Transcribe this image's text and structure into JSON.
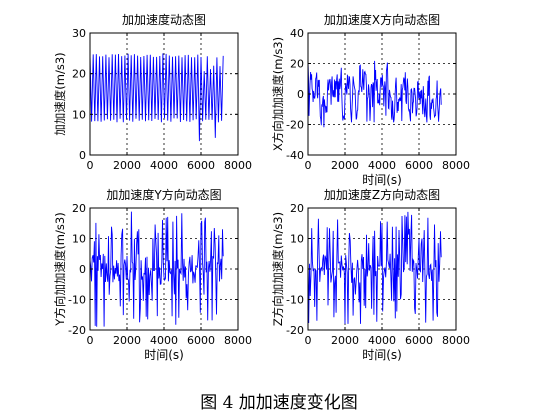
{
  "figure_caption": "图 4  加加速度变化图",
  "colors": {
    "line": "#0000ff",
    "axis": "#000000",
    "grid": "#000000",
    "background": "#ffffff"
  },
  "chart_data": [
    {
      "type": "line",
      "title": "加加速度动态图",
      "xlabel": "",
      "ylabel": "加加速度(m/s3)",
      "xlim": [
        0,
        8000
      ],
      "ylim": [
        0,
        30
      ],
      "xticks": [
        "0",
        "2000",
        "4000",
        "6000",
        "8000"
      ],
      "yticks": [
        "0",
        "10",
        "20",
        "30"
      ],
      "grid": true,
      "pattern": "oscillating",
      "data_extent": [
        0,
        7200
      ],
      "envelope": {
        "upper": [
          24,
          25
        ],
        "lower": [
          8,
          9
        ],
        "late_low": 2
      },
      "series": [
        {
          "name": "",
          "color": "#0000ff"
        }
      ]
    },
    {
      "type": "line",
      "title": "加加速度X方向动态图",
      "xlabel": "时间(s)",
      "ylabel": "X方向加加速度(m/s3)",
      "xlim": [
        0,
        8000
      ],
      "ylim": [
        -40,
        40
      ],
      "xticks": [
        "0",
        "2000",
        "4000",
        "6000",
        "8000"
      ],
      "yticks": [
        "-40",
        "-20",
        "0",
        "20",
        "40"
      ],
      "grid": true,
      "pattern": "noisy",
      "data_extent": [
        0,
        7200
      ],
      "envelope": {
        "upper": 22,
        "lower": -22
      },
      "series": [
        {
          "name": "",
          "color": "#0000ff"
        }
      ]
    },
    {
      "type": "line",
      "title": "加加速度Y方向动态图",
      "xlabel": "时间(s)",
      "ylabel": "Y方向加加速度(m/s3)",
      "xlim": [
        0,
        8000
      ],
      "ylim": [
        -20,
        20
      ],
      "xticks": [
        "0",
        "2000",
        "4000",
        "6000",
        "8000"
      ],
      "yticks": [
        "-20",
        "-10",
        "0",
        "10",
        "20"
      ],
      "grid": true,
      "pattern": "spiky",
      "data_extent": [
        0,
        7200
      ],
      "envelope": {
        "upper": 19,
        "lower": -19
      },
      "series": [
        {
          "name": "",
          "color": "#0000ff"
        }
      ]
    },
    {
      "type": "line",
      "title": "加加速度Z方向动态图",
      "xlabel": "时间(s)",
      "ylabel": "Z方向加加速度(m/s3)",
      "xlim": [
        0,
        8000
      ],
      "ylim": [
        -20,
        20
      ],
      "xticks": [
        "0",
        "2000",
        "4000",
        "6000",
        "8000"
      ],
      "yticks": [
        "-20",
        "-10",
        "0",
        "10",
        "20"
      ],
      "grid": true,
      "pattern": "spiky",
      "data_extent": [
        0,
        7200
      ],
      "envelope": {
        "upper": 20,
        "lower": -18
      },
      "series": [
        {
          "name": "",
          "color": "#0000ff"
        }
      ]
    }
  ]
}
